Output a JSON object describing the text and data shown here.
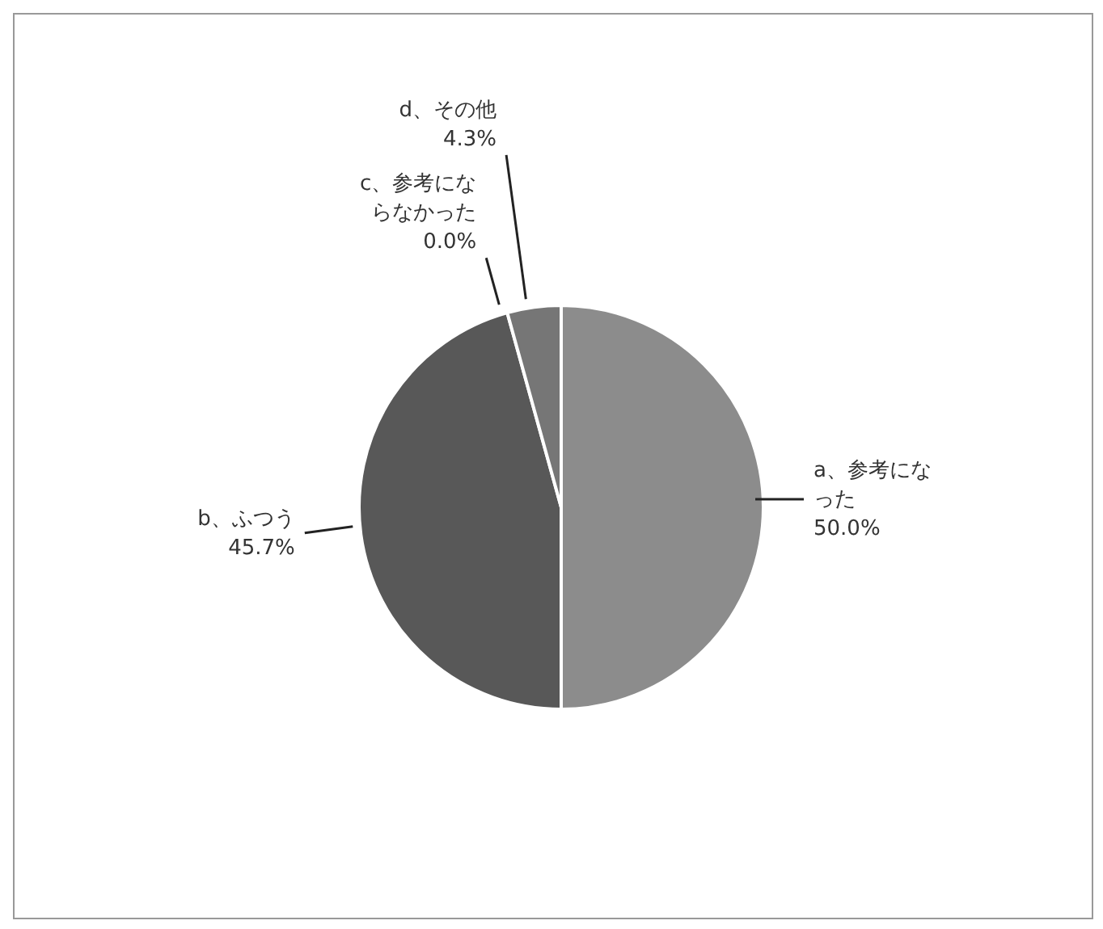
{
  "chart_data": {
    "type": "pie",
    "categories": [
      "a、参考になった",
      "b、ふつう",
      "c、参考にならなかった",
      "d、その他"
    ],
    "values": [
      50.0,
      45.7,
      0.0,
      4.3
    ],
    "value_labels": [
      "50.0%",
      "45.7%",
      "0.0%",
      "4.3%"
    ],
    "colors": [
      "#8c8c8c",
      "#585858",
      "#333333",
      "#767676"
    ],
    "legend": false
  }
}
